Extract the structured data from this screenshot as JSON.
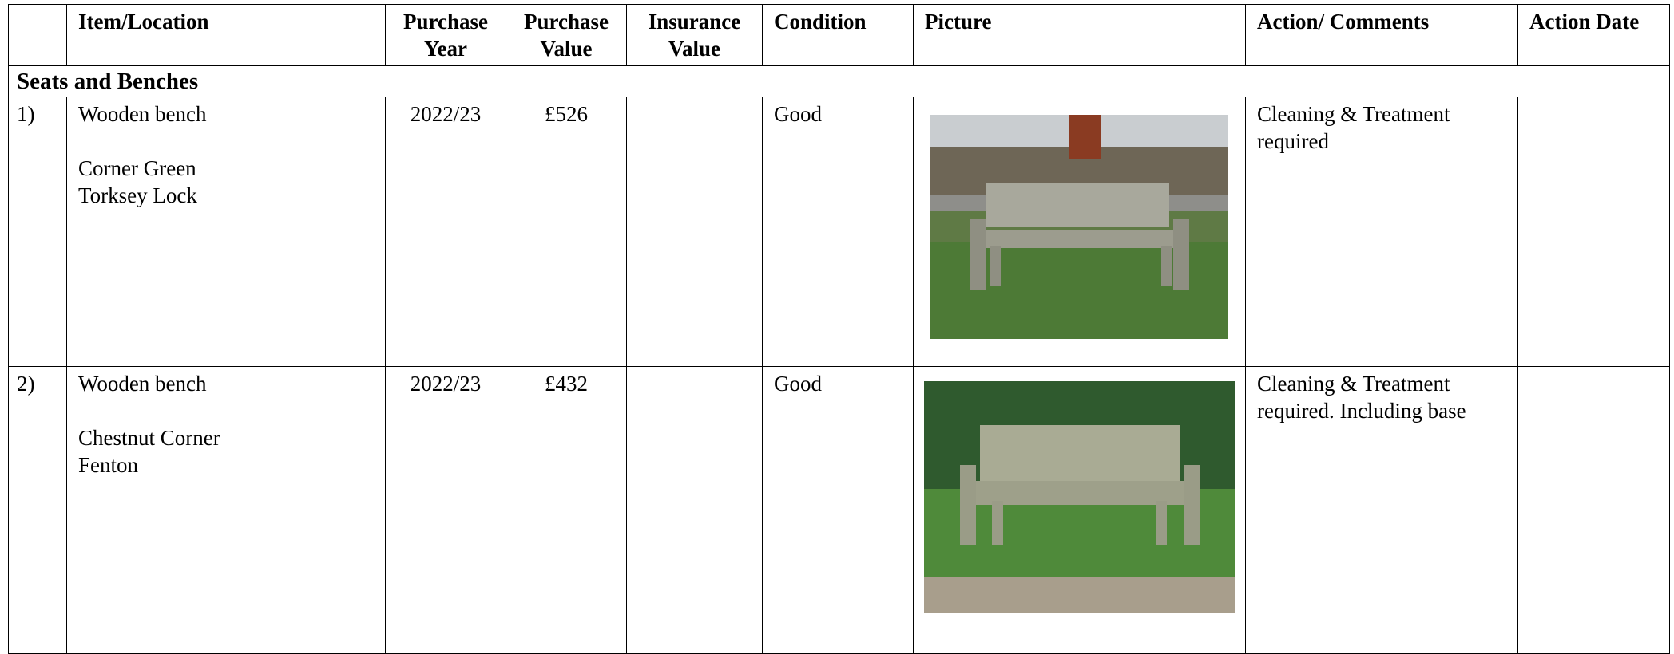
{
  "table": {
    "columns": [
      "Item/Location",
      "Purchase Year",
      "Purchase Value",
      "Insurance Value",
      "Condition",
      "Picture",
      "Action/ Comments",
      "Action Date"
    ],
    "section": "Seats and Benches",
    "rows": [
      {
        "number": "1)",
        "item": "Wooden bench",
        "location": [
          "Corner Green",
          "Torksey Lock"
        ],
        "year": "2022/23",
        "value": "£526",
        "condition": "Good",
        "comments": "Cleaning & Treatment required"
      },
      {
        "number": "2)",
        "item": "Wooden bench",
        "location": [
          "Chestnut Corner",
          "Fenton"
        ],
        "year": "2022/23",
        "value": "£432",
        "condition": "Good",
        "comments": "Cleaning & Treatment required. Including base"
      }
    ]
  }
}
